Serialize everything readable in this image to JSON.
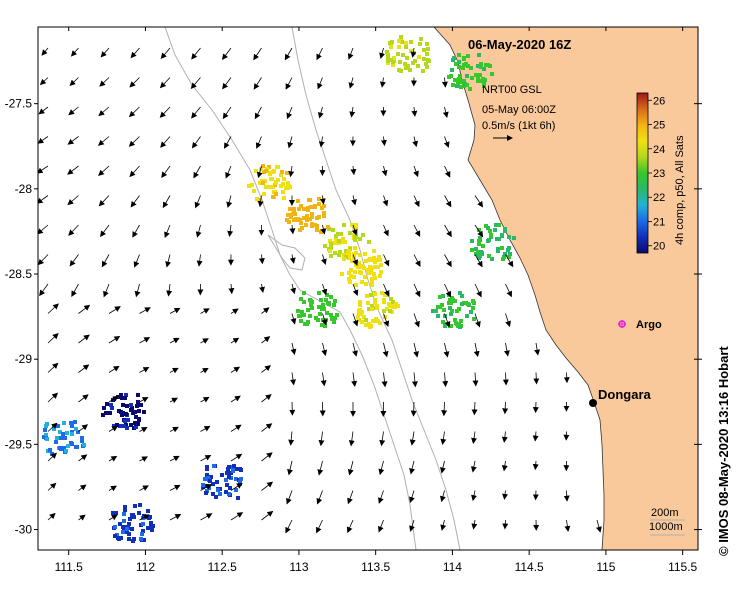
{
  "title": "06-May-2020 16Z",
  "current_info": {
    "line1": "NRT00 GSL",
    "line2": "05-May 06:00Z",
    "line3": "0.5m/s (1kt 6h)"
  },
  "colorbar": {
    "label": "4h comp, p50, All Sats",
    "ticks": [
      "20",
      "21",
      "22",
      "23",
      "24",
      "25",
      "26"
    ],
    "min": 19.7,
    "max": 26.3,
    "colors": [
      "#0a0a6e",
      "#1030b8",
      "#1e6ae8",
      "#22b2d8",
      "#2ab868",
      "#36c82a",
      "#b4d81c",
      "#f0e010",
      "#f2b414",
      "#d86a18",
      "#a01818"
    ]
  },
  "credit": "© IMOS 08-May-2020 13:16 Hobart",
  "places": {
    "dongara": "Dongara",
    "argo": "Argo"
  },
  "bathymetry": {
    "label1": "200m",
    "label2": "1000m"
  },
  "axes": {
    "x_ticks": [
      "111.5",
      "112",
      "112.5",
      "113",
      "113.5",
      "114",
      "114.5",
      "115",
      "115.5"
    ],
    "y_ticks": [
      "-27.5",
      "-28",
      "-28.5",
      "-29",
      "-29.5",
      "-30"
    ],
    "lon_range": [
      111.3,
      115.6
    ],
    "lat_range": [
      -27.05,
      -30.12
    ]
  },
  "chart_data": {
    "type": "map",
    "title": "06-May-2020 16Z",
    "xlabel": "",
    "ylabel": "",
    "lon_range": [
      111.3,
      115.6
    ],
    "lat_range": [
      -30.12,
      -27.05
    ],
    "x_ticks": [
      111.5,
      112,
      112.5,
      113,
      113.5,
      114,
      114.5,
      115,
      115.5
    ],
    "y_ticks": [
      -27.5,
      -28,
      -28.5,
      -29,
      -29.5,
      -30
    ],
    "places": [
      {
        "name": "Dongara",
        "lon": 114.93,
        "lat": -29.26
      },
      {
        "name": "Argo",
        "lon": 115.1,
        "lat": -28.82
      }
    ],
    "sst_patches": [
      {
        "lon": 113.3,
        "lat": -28.3,
        "value": 24.0
      },
      {
        "lon": 113.4,
        "lat": -28.45,
        "value": 24.3
      },
      {
        "lon": 113.5,
        "lat": -28.7,
        "value": 24.2
      },
      {
        "lon": 113.1,
        "lat": -28.7,
        "value": 23.0
      },
      {
        "lon": 113.05,
        "lat": -28.15,
        "value": 25.0
      },
      {
        "lon": 112.8,
        "lat": -27.95,
        "value": 24.5
      },
      {
        "lon": 114.0,
        "lat": -28.7,
        "value": 22.8
      },
      {
        "lon": 114.25,
        "lat": -28.3,
        "value": 22.6
      },
      {
        "lon": 114.1,
        "lat": -27.3,
        "value": 22.8
      },
      {
        "lon": 113.7,
        "lat": -27.2,
        "value": 23.8
      },
      {
        "lon": 111.85,
        "lat": -29.3,
        "value": 19.9
      },
      {
        "lon": 112.5,
        "lat": -29.7,
        "value": 20.6
      },
      {
        "lon": 111.9,
        "lat": -29.95,
        "value": 20.5
      },
      {
        "lon": 111.45,
        "lat": -29.45,
        "value": 21.2
      }
    ]
  }
}
